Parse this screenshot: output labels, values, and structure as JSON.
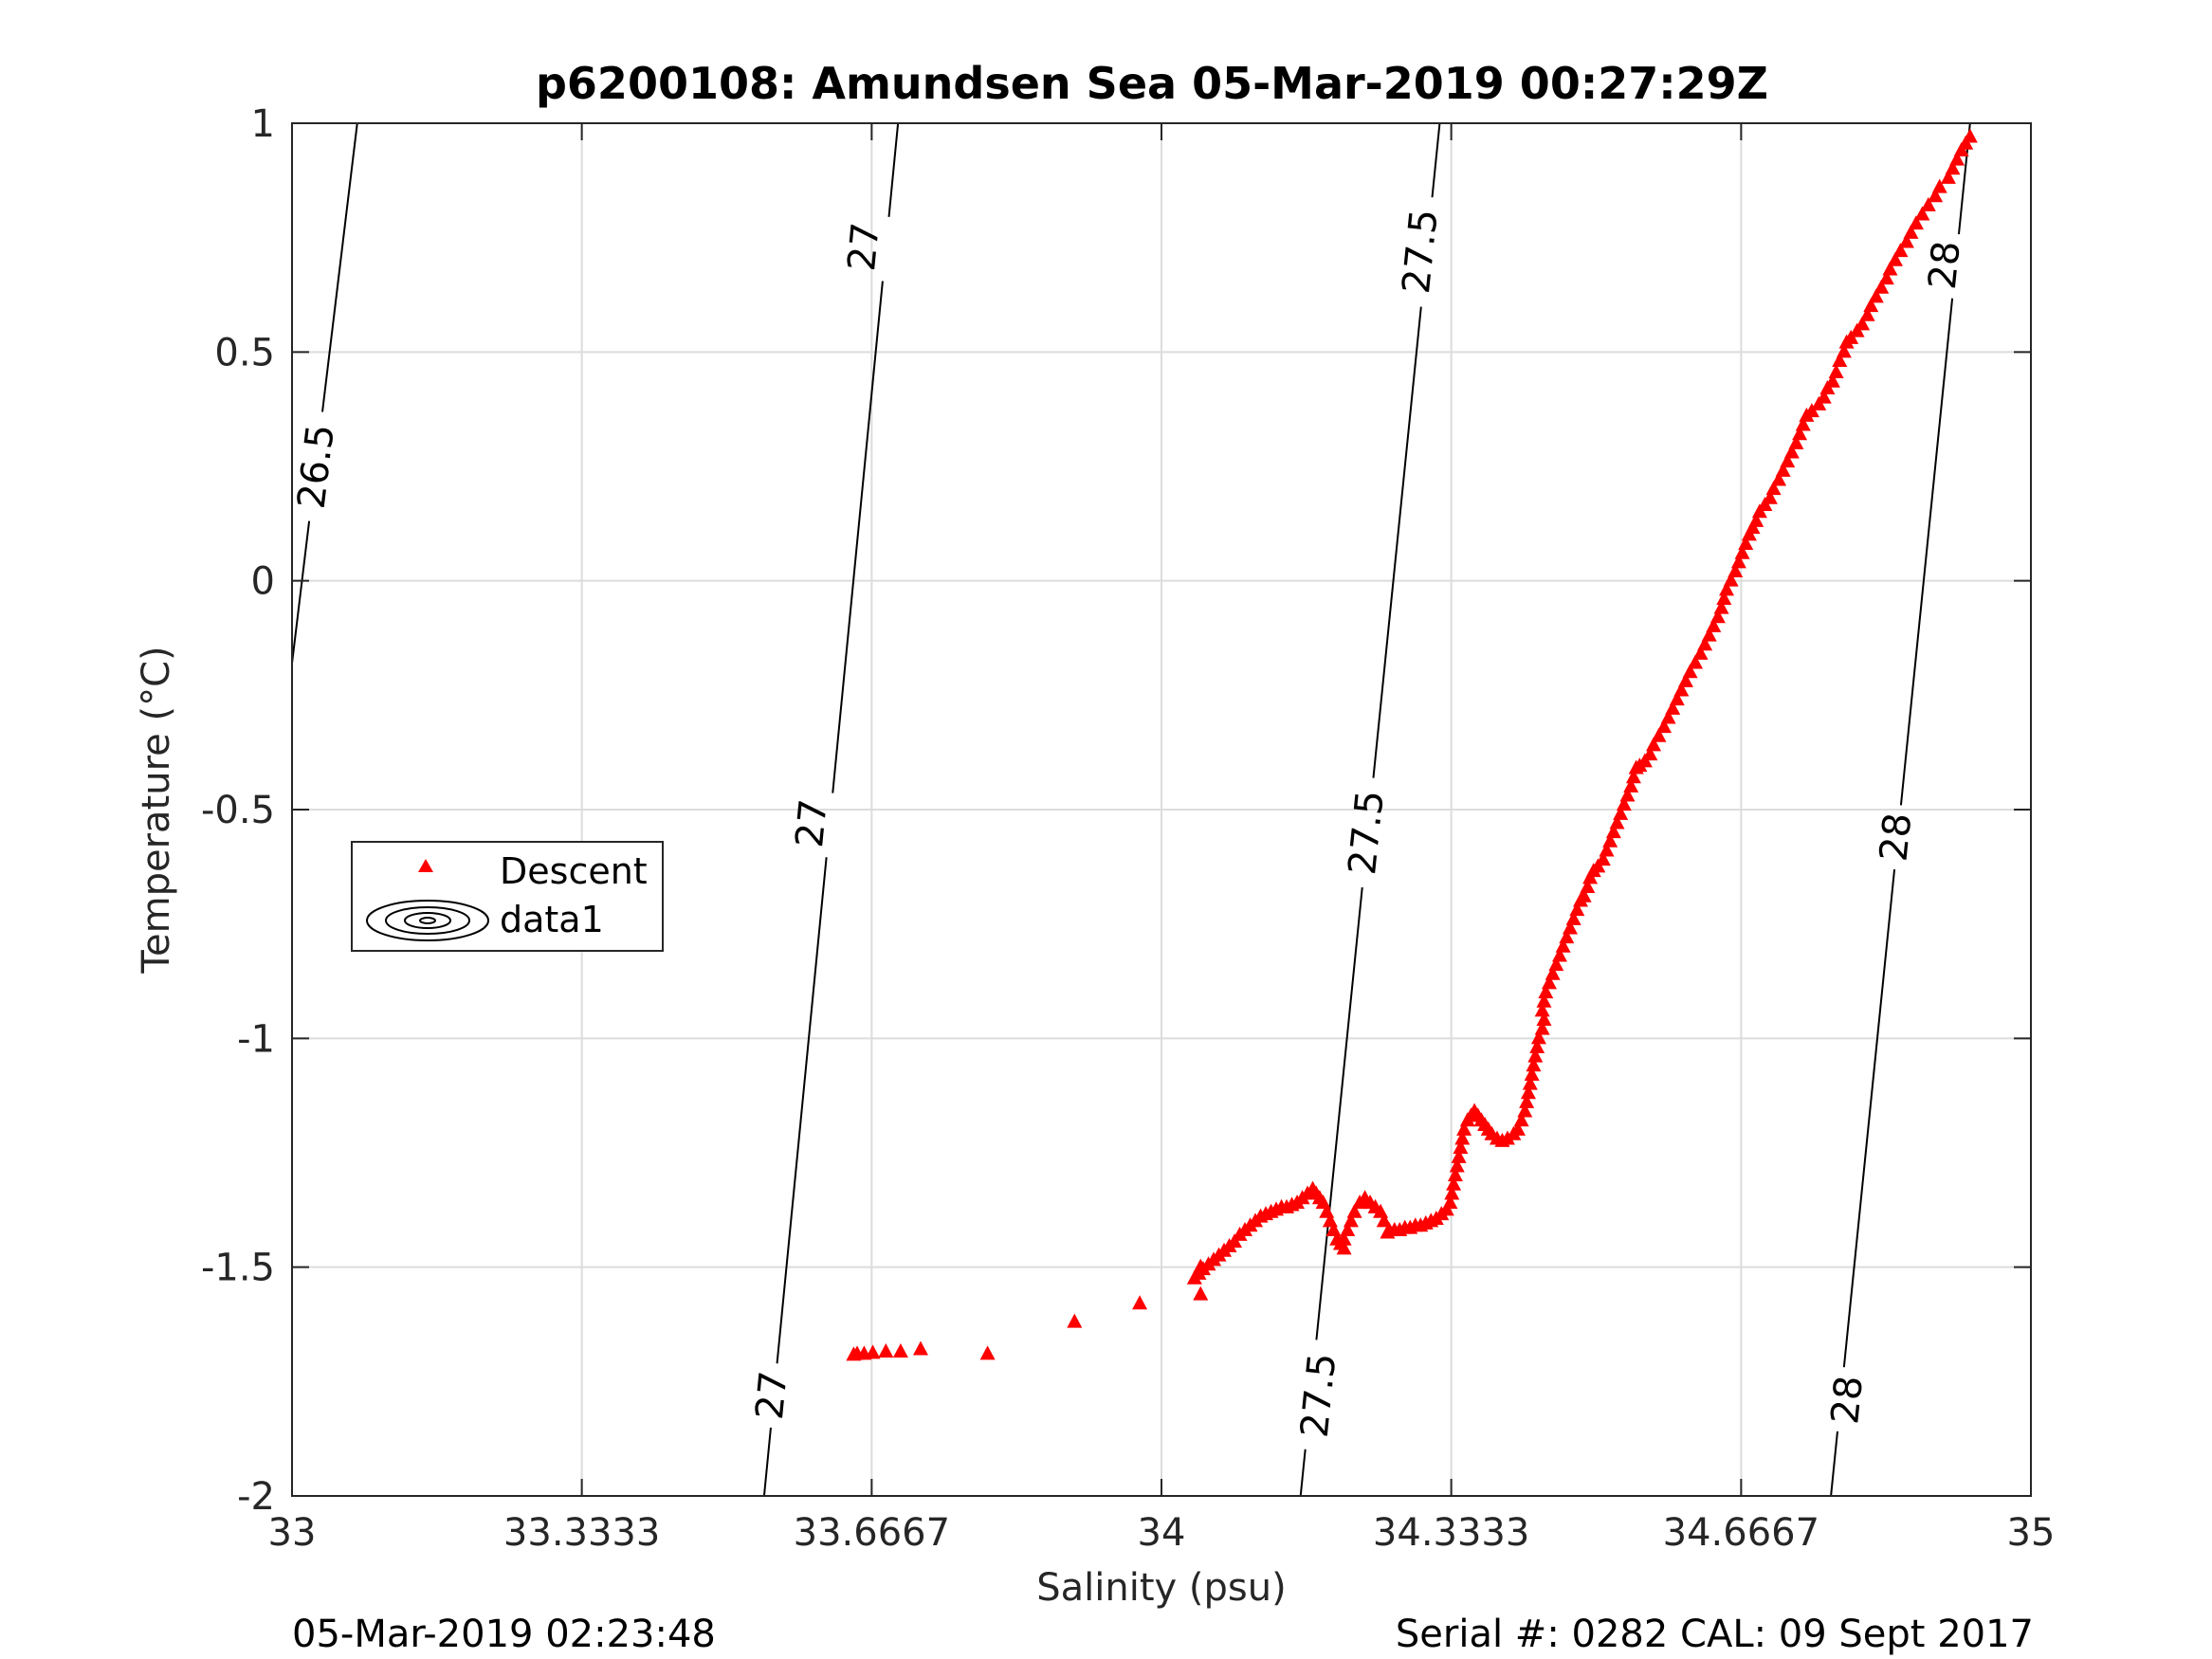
{
  "chart_data": {
    "type": "scatter",
    "title": "p6200108: Amundsen Sea 05-Mar-2019 00:27:29Z",
    "xlabel": "Salinity (psu)",
    "ylabel": "Temperature (°C)",
    "xlim": [
      33,
      35
    ],
    "ylim": [
      -2,
      1
    ],
    "xticks": [
      33,
      33.3333,
      33.6667,
      34,
      34.3333,
      34.6667,
      35
    ],
    "xtick_labels": [
      "33",
      "33.3333",
      "33.6667",
      "34",
      "34.3333",
      "34.6667",
      "35"
    ],
    "yticks": [
      -2,
      -1.5,
      -1,
      -0.5,
      0,
      0.5,
      1
    ],
    "ytick_labels": [
      "-2",
      "-1.5",
      "-1",
      "-0.5",
      "0",
      "0.5",
      "1"
    ],
    "grid": true,
    "legend": {
      "placement": "left",
      "entries": [
        {
          "label": "Descent",
          "marker": "triangle",
          "color": "#ff0000"
        },
        {
          "label": "data1",
          "marker": "contour",
          "color": "#000000"
        }
      ]
    },
    "contours": [
      {
        "level": "26.5",
        "points": [
          [
            33.0,
            -0.18
          ],
          [
            33.075,
            1.0
          ]
        ],
        "labels": [
          [
            33.027,
            0.25
          ]
        ]
      },
      {
        "level": "27",
        "points": [
          [
            33.543,
            -2.0
          ],
          [
            33.697,
            1.0
          ]
        ],
        "labels": [
          [
            33.657,
            0.73
          ],
          [
            33.597,
            -0.53
          ],
          [
            33.551,
            -1.78
          ]
        ]
      },
      {
        "level": "27.5",
        "points": [
          [
            34.16,
            -2.0
          ],
          [
            34.32,
            1.0
          ]
        ],
        "labels": [
          [
            34.297,
            0.72
          ],
          [
            34.235,
            -0.55
          ],
          [
            34.18,
            -1.78
          ]
        ]
      },
      {
        "level": "28",
        "points": [
          [
            34.77,
            -2.0
          ],
          [
            34.93,
            1.0
          ]
        ],
        "labels": [
          [
            34.9,
            0.69
          ],
          [
            34.844,
            -0.56
          ],
          [
            34.788,
            -1.79
          ]
        ]
      }
    ],
    "series": [
      {
        "name": "Descent",
        "color": "#ff0000",
        "marker": "triangle",
        "points": [
          [
            34.93,
            0.97
          ],
          [
            34.925,
            0.955
          ],
          [
            34.92,
            0.94
          ],
          [
            34.915,
            0.92
          ],
          [
            34.91,
            0.9
          ],
          [
            34.905,
            0.88
          ],
          [
            34.895,
            0.86
          ],
          [
            34.89,
            0.84
          ],
          [
            34.882,
            0.82
          ],
          [
            34.875,
            0.8
          ],
          [
            34.868,
            0.78
          ],
          [
            34.862,
            0.76
          ],
          [
            34.857,
            0.74
          ],
          [
            34.85,
            0.72
          ],
          [
            34.844,
            0.7
          ],
          [
            34.838,
            0.68
          ],
          [
            34.834,
            0.66
          ],
          [
            34.828,
            0.64
          ],
          [
            34.822,
            0.62
          ],
          [
            34.816,
            0.6
          ],
          [
            34.812,
            0.58
          ],
          [
            34.806,
            0.56
          ],
          [
            34.8,
            0.545
          ],
          [
            34.793,
            0.53
          ],
          [
            34.788,
            0.52
          ],
          [
            34.785,
            0.5
          ],
          [
            34.78,
            0.48
          ],
          [
            34.776,
            0.455
          ],
          [
            34.772,
            0.435
          ],
          [
            34.766,
            0.42
          ],
          [
            34.762,
            0.4
          ],
          [
            34.756,
            0.385
          ],
          [
            34.748,
            0.37
          ],
          [
            34.742,
            0.36
          ],
          [
            34.738,
            0.34
          ],
          [
            34.734,
            0.32
          ],
          [
            34.73,
            0.3
          ],
          [
            34.725,
            0.28
          ],
          [
            34.72,
            0.26
          ],
          [
            34.715,
            0.24
          ],
          [
            34.71,
            0.22
          ],
          [
            34.704,
            0.2
          ],
          [
            34.7,
            0.18
          ],
          [
            34.694,
            0.165
          ],
          [
            34.688,
            0.15
          ],
          [
            34.684,
            0.13
          ],
          [
            34.68,
            0.115
          ],
          [
            34.676,
            0.1
          ],
          [
            34.672,
            0.08
          ],
          [
            34.668,
            0.06
          ],
          [
            34.664,
            0.04
          ],
          [
            34.66,
            0.02
          ],
          [
            34.655,
            0.0
          ],
          [
            34.65,
            -0.02
          ],
          [
            34.647,
            -0.04
          ],
          [
            34.644,
            -0.06
          ],
          [
            34.64,
            -0.08
          ],
          [
            34.635,
            -0.1
          ],
          [
            34.63,
            -0.12
          ],
          [
            34.625,
            -0.14
          ],
          [
            34.62,
            -0.16
          ],
          [
            34.614,
            -0.18
          ],
          [
            34.608,
            -0.2
          ],
          [
            34.603,
            -0.22
          ],
          [
            34.598,
            -0.24
          ],
          [
            34.593,
            -0.26
          ],
          [
            34.588,
            -0.28
          ],
          [
            34.583,
            -0.3
          ],
          [
            34.578,
            -0.32
          ],
          [
            34.572,
            -0.34
          ],
          [
            34.566,
            -0.36
          ],
          [
            34.562,
            -0.38
          ],
          [
            34.556,
            -0.395
          ],
          [
            34.55,
            -0.405
          ],
          [
            34.546,
            -0.41
          ],
          [
            34.543,
            -0.43
          ],
          [
            34.54,
            -0.45
          ],
          [
            34.536,
            -0.47
          ],
          [
            34.532,
            -0.49
          ],
          [
            34.528,
            -0.51
          ],
          [
            34.524,
            -0.53
          ],
          [
            34.52,
            -0.55
          ],
          [
            34.516,
            -0.57
          ],
          [
            34.512,
            -0.59
          ],
          [
            34.508,
            -0.61
          ],
          [
            34.502,
            -0.625
          ],
          [
            34.497,
            -0.635
          ],
          [
            34.493,
            -0.65
          ],
          [
            34.49,
            -0.67
          ],
          [
            34.486,
            -0.69
          ],
          [
            34.482,
            -0.7
          ],
          [
            34.478,
            -0.72
          ],
          [
            34.474,
            -0.74
          ],
          [
            34.47,
            -0.76
          ],
          [
            34.466,
            -0.78
          ],
          [
            34.462,
            -0.8
          ],
          [
            34.458,
            -0.82
          ],
          [
            34.454,
            -0.84
          ],
          [
            34.45,
            -0.86
          ],
          [
            34.446,
            -0.88
          ],
          [
            34.442,
            -0.9
          ],
          [
            34.44,
            -0.92
          ],
          [
            34.438,
            -0.94
          ],
          [
            34.44,
            -0.96
          ],
          [
            34.438,
            -0.98
          ],
          [
            34.434,
            -1.0
          ],
          [
            34.432,
            -1.02
          ],
          [
            34.43,
            -1.04
          ],
          [
            34.428,
            -1.06
          ],
          [
            34.426,
            -1.08
          ],
          [
            34.424,
            -1.1
          ],
          [
            34.422,
            -1.12
          ],
          [
            34.42,
            -1.14
          ],
          [
            34.418,
            -1.16
          ],
          [
            34.414,
            -1.18
          ],
          [
            34.41,
            -1.2
          ],
          [
            34.405,
            -1.21
          ],
          [
            34.398,
            -1.22
          ],
          [
            34.392,
            -1.225
          ],
          [
            34.386,
            -1.22
          ],
          [
            34.38,
            -1.21
          ],
          [
            34.376,
            -1.2
          ],
          [
            34.372,
            -1.19
          ],
          [
            34.368,
            -1.18
          ],
          [
            34.364,
            -1.17
          ],
          [
            34.36,
            -1.16
          ],
          [
            34.356,
            -1.17
          ],
          [
            34.352,
            -1.18
          ],
          [
            34.348,
            -1.2
          ],
          [
            34.346,
            -1.22
          ],
          [
            34.344,
            -1.24
          ],
          [
            34.342,
            -1.26
          ],
          [
            34.34,
            -1.28
          ],
          [
            34.338,
            -1.3
          ],
          [
            34.336,
            -1.32
          ],
          [
            34.334,
            -1.34
          ],
          [
            34.332,
            -1.36
          ],
          [
            34.328,
            -1.375
          ],
          [
            34.322,
            -1.385
          ],
          [
            34.316,
            -1.395
          ],
          [
            34.31,
            -1.4
          ],
          [
            34.304,
            -1.405
          ],
          [
            34.298,
            -1.41
          ],
          [
            34.292,
            -1.41
          ],
          [
            34.286,
            -1.415
          ],
          [
            34.28,
            -1.415
          ],
          [
            34.274,
            -1.42
          ],
          [
            34.268,
            -1.42
          ],
          [
            34.262,
            -1.42
          ],
          [
            34.256,
            -1.4
          ],
          [
            34.252,
            -1.38
          ],
          [
            34.246,
            -1.37
          ],
          [
            34.24,
            -1.36
          ],
          [
            34.234,
            -1.35
          ],
          [
            34.228,
            -1.36
          ],
          [
            34.222,
            -1.38
          ],
          [
            34.218,
            -1.4
          ],
          [
            34.214,
            -1.42
          ],
          [
            34.21,
            -1.44
          ],
          [
            34.206,
            -1.45
          ],
          [
            34.202,
            -1.44
          ],
          [
            34.198,
            -1.42
          ],
          [
            34.194,
            -1.4
          ],
          [
            34.19,
            -1.38
          ],
          [
            34.186,
            -1.36
          ],
          [
            34.182,
            -1.35
          ],
          [
            34.178,
            -1.34
          ],
          [
            34.174,
            -1.33
          ],
          [
            34.168,
            -1.34
          ],
          [
            34.162,
            -1.35
          ],
          [
            34.156,
            -1.36
          ],
          [
            34.15,
            -1.365
          ],
          [
            34.144,
            -1.37
          ],
          [
            34.138,
            -1.37
          ],
          [
            34.132,
            -1.375
          ],
          [
            34.126,
            -1.38
          ],
          [
            34.12,
            -1.385
          ],
          [
            34.114,
            -1.39
          ],
          [
            34.108,
            -1.4
          ],
          [
            34.102,
            -1.41
          ],
          [
            34.096,
            -1.42
          ],
          [
            34.09,
            -1.43
          ],
          [
            34.084,
            -1.445
          ],
          [
            34.078,
            -1.455
          ],
          [
            34.072,
            -1.465
          ],
          [
            34.066,
            -1.475
          ],
          [
            34.06,
            -1.485
          ],
          [
            34.054,
            -1.495
          ],
          [
            34.048,
            -1.505
          ],
          [
            34.043,
            -1.515
          ],
          [
            34.038,
            -1.525
          ],
          [
            34.045,
            -1.5
          ],
          [
            34.21,
            -1.46
          ],
          [
            34.26,
            -1.425
          ],
          [
            34.045,
            -1.56
          ],
          [
            33.975,
            -1.58
          ],
          [
            33.9,
            -1.62
          ],
          [
            33.8,
            -1.69
          ],
          [
            33.723,
            -1.68
          ],
          [
            33.7,
            -1.685
          ],
          [
            33.683,
            -1.685
          ],
          [
            33.668,
            -1.688
          ],
          [
            33.658,
            -1.69
          ],
          [
            33.65,
            -1.69
          ],
          [
            33.646,
            -1.692
          ]
        ]
      }
    ]
  },
  "footer": {
    "left": "05-Mar-2019 02:23:48",
    "right": "Serial #: 0282  CAL: 09 Sept 2017"
  }
}
